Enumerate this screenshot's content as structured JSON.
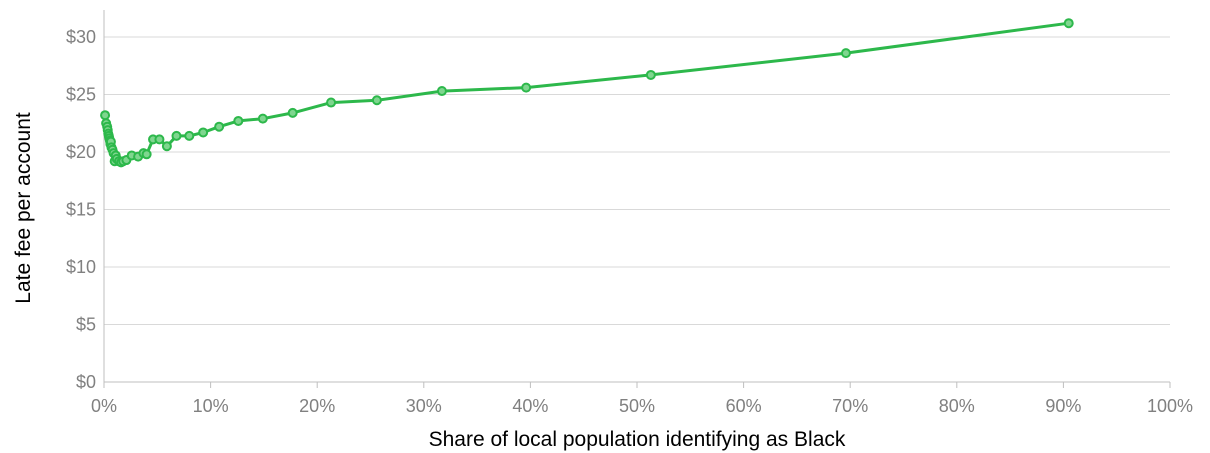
{
  "chart_data": {
    "type": "line",
    "title": "",
    "xlabel": "Share of local population identifying as Black",
    "ylabel": "Late fee per account",
    "xlim": [
      0,
      100
    ],
    "ylim": [
      0,
      32
    ],
    "x_ticks": [
      0,
      10,
      20,
      30,
      40,
      50,
      60,
      70,
      80,
      90,
      100
    ],
    "x_tick_labels": [
      "0%",
      "10%",
      "20%",
      "30%",
      "40%",
      "50%",
      "60%",
      "70%",
      "80%",
      "90%",
      "100%"
    ],
    "y_ticks": [
      0,
      5,
      10,
      15,
      20,
      25,
      30
    ],
    "y_tick_labels": [
      "$0",
      "$5",
      "$10",
      "$15",
      "$20",
      "$25",
      "$30"
    ],
    "grid": "horizontal",
    "color": "#2db84b",
    "series": [
      {
        "x": [
          0.1,
          0.2,
          0.3,
          0.35,
          0.4,
          0.45,
          0.5,
          0.55,
          0.6,
          0.65,
          0.7,
          0.8,
          0.9,
          1.0,
          1.1,
          1.2,
          1.4,
          1.6,
          1.8,
          2.1,
          2.6,
          3.2,
          3.7,
          4.0,
          4.6,
          5.2,
          5.9,
          6.8,
          8.0,
          9.3,
          10.8,
          12.6,
          14.9,
          17.7,
          21.3,
          25.6,
          31.7,
          39.6,
          51.3,
          69.6,
          90.5
        ],
        "y": [
          23.2,
          22.5,
          22.2,
          21.9,
          21.6,
          21.4,
          21.2,
          21.0,
          20.7,
          20.9,
          20.4,
          20.2,
          19.9,
          19.2,
          19.7,
          19.4,
          19.2,
          19.1,
          19.2,
          19.3,
          19.7,
          19.6,
          19.9,
          19.8,
          21.1,
          21.1,
          20.5,
          21.4,
          21.4,
          21.7,
          22.2,
          22.7,
          22.9,
          23.4,
          24.3,
          24.5,
          25.3,
          25.6,
          26.7,
          28.6,
          31.2
        ]
      }
    ]
  }
}
